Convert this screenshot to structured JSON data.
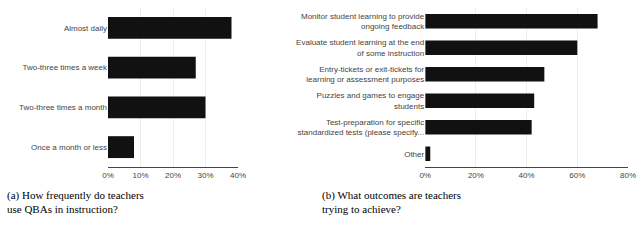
{
  "chart_data": [
    {
      "type": "bar",
      "orientation": "horizontal",
      "title": "(a) How frequently do teachers\nuse QBAs in instruction?",
      "categories": [
        "Almost daily",
        "Two-three times a week",
        "Two-three times a month",
        "Once a month or less"
      ],
      "values": [
        38,
        27,
        30,
        8
      ],
      "color": "#111111",
      "xlim": [
        0,
        40
      ],
      "xticks": [
        {
          "value": 0,
          "label": "0%"
        },
        {
          "value": 10,
          "label": "10%"
        },
        {
          "value": 20,
          "label": "20%"
        },
        {
          "value": 30,
          "label": "30%"
        },
        {
          "value": 40,
          "label": "40%"
        }
      ],
      "grid": true
    },
    {
      "type": "bar",
      "orientation": "horizontal",
      "title": "(b) What outcomes are teachers\ntrying to achieve?",
      "categories": [
        "Monitor student learning to provide\nongoing feedback",
        "Evaluate student learning at the end\nof some instruction",
        "Entry-tickets or exit-tickets for\nlearning or assessment purposes",
        "Puzzles and games to engage\nstudents",
        "Test-preparation for specific\nstandardized tests (please specify...",
        "Other"
      ],
      "values": [
        68,
        60,
        47,
        43,
        42,
        2
      ],
      "color": "#111111",
      "xlim": [
        0,
        80
      ],
      "xticks": [
        {
          "value": 0,
          "label": "0%"
        },
        {
          "value": 20,
          "label": "20%"
        },
        {
          "value": 40,
          "label": "40%"
        },
        {
          "value": 60,
          "label": "60%"
        },
        {
          "value": 80,
          "label": "80%"
        }
      ],
      "grid": true
    }
  ]
}
